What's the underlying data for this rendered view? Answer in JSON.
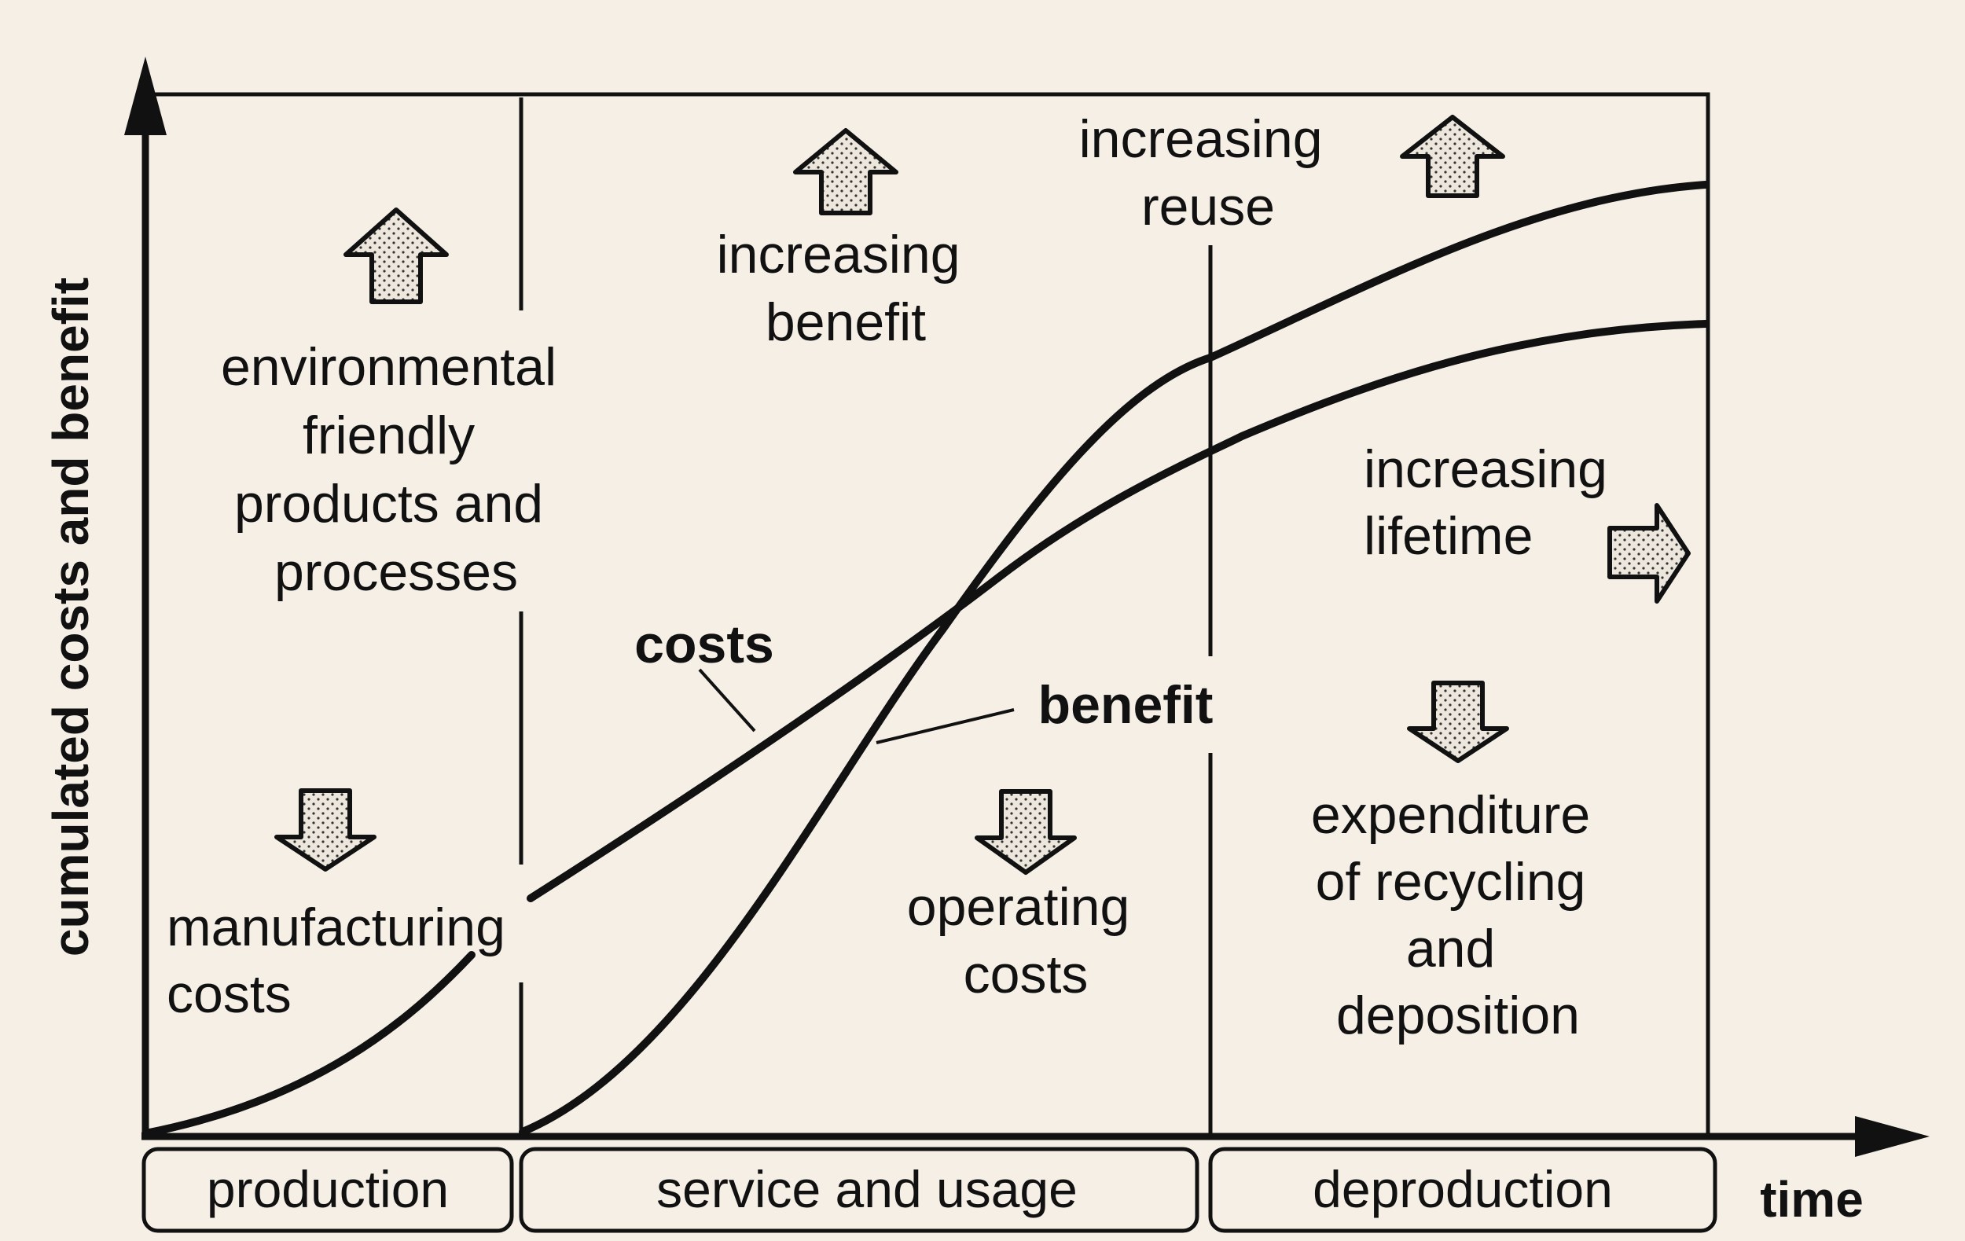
{
  "axes": {
    "y_label": "cumulated costs and benefit",
    "x_label": "time"
  },
  "phases": [
    {
      "label": "production"
    },
    {
      "label": "service and usage"
    },
    {
      "label": "deproduction"
    }
  ],
  "curves": {
    "costs_label": "costs",
    "benefit_label": "benefit"
  },
  "annotations": {
    "environmental": [
      "environmental",
      "friendly",
      "products and",
      "processes"
    ],
    "manufacturing": [
      "manufacturing",
      "costs"
    ],
    "increasing_benefit": [
      "increasing",
      "benefit"
    ],
    "increasing_reuse": [
      "increasing",
      "reuse"
    ],
    "increasing_lifetime": [
      "increasing",
      "lifetime"
    ],
    "operating": [
      "operating",
      "costs"
    ],
    "recycling": [
      "expenditure",
      "of recycling",
      "and",
      "deposition"
    ]
  },
  "arrows": [
    {
      "name": "environmental-up-arrow",
      "direction": "up"
    },
    {
      "name": "manufacturing-down-arrow",
      "direction": "down"
    },
    {
      "name": "benefit-up-arrow",
      "direction": "up"
    },
    {
      "name": "reuse-up-arrow",
      "direction": "up"
    },
    {
      "name": "lifetime-right-arrow",
      "direction": "right"
    },
    {
      "name": "operating-down-arrow",
      "direction": "down"
    },
    {
      "name": "recycling-down-arrow",
      "direction": "down"
    }
  ],
  "colors": {
    "background": "#f6efe6",
    "ink": "#111111",
    "arrow_fill": "#ece6dc"
  }
}
